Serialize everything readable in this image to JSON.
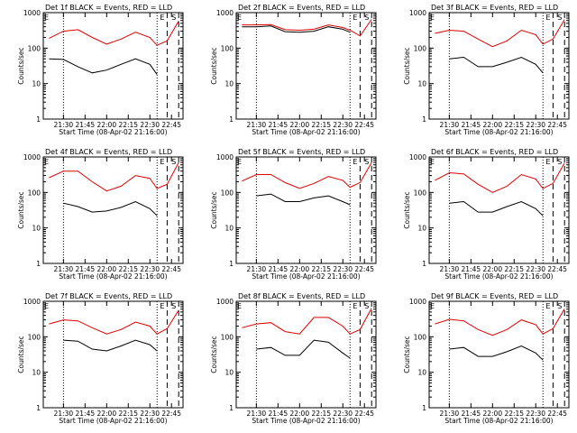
{
  "figure": {
    "colors": {
      "events": "#000000",
      "lld": "#e00000",
      "axes": "#000000",
      "background": "#ffffff"
    },
    "shared": {
      "xlabel": "Start Time (08-Apr-02 21:16:00)",
      "ylabel": "Counts/sec",
      "xticks": [
        "21:30",
        "21:45",
        "22:00",
        "22:15",
        "22:30",
        "22:45"
      ],
      "yticks": [
        "1",
        "10",
        "100",
        "1000"
      ],
      "markers": [
        "E",
        "S"
      ]
    }
  },
  "chart_data": [
    {
      "type": "line",
      "title": "Det 1f BLACK = Events, RED = LLD",
      "xlabel": "Start Time (08-Apr-02 21:16:00)",
      "ylabel": "Counts/sec",
      "yscale": "log",
      "ylim": [
        1,
        1000
      ],
      "x": [
        "21:20",
        "21:30",
        "21:40",
        "21:50",
        "22:00",
        "22:10",
        "22:20",
        "22:30",
        "22:35",
        "22:42",
        "22:50"
      ],
      "series": [
        {
          "name": "LLD",
          "values": [
            190,
            300,
            330,
            200,
            130,
            180,
            280,
            200,
            120,
            160,
            580
          ]
        },
        {
          "name": "Events",
          "values": [
            50,
            48,
            30,
            20,
            24,
            35,
            50,
            35,
            18,
            null,
            null
          ]
        }
      ],
      "vlines": [
        {
          "x": "21:30",
          "style": "dotted"
        },
        {
          "x": "22:35",
          "style": "dotted"
        },
        {
          "x": "22:42",
          "style": "dashed",
          "label": "E"
        },
        {
          "x": "22:50",
          "style": "dashed",
          "label": "S"
        }
      ]
    },
    {
      "type": "line",
      "title": "Det 2f BLACK = Events, RED = LLD",
      "xlabel": "Start Time (08-Apr-02 21:16:00)",
      "ylabel": "Counts/sec",
      "yscale": "log",
      "ylim": [
        1,
        1000
      ],
      "x": [
        "21:20",
        "21:30",
        "21:40",
        "21:50",
        "22:00",
        "22:10",
        "22:20",
        "22:30",
        "22:35",
        "22:42",
        "22:50"
      ],
      "series": [
        {
          "name": "LLD",
          "values": [
            450,
            450,
            460,
            330,
            320,
            340,
            450,
            380,
            320,
            220,
            650
          ]
        },
        {
          "name": "Events",
          "values": [
            400,
            400,
            420,
            290,
            280,
            300,
            400,
            340,
            280,
            null,
            null
          ]
        }
      ],
      "vlines": [
        {
          "x": "21:30",
          "style": "dotted"
        },
        {
          "x": "22:35",
          "style": "dotted"
        },
        {
          "x": "22:42",
          "style": "dashed",
          "label": "E"
        },
        {
          "x": "22:50",
          "style": "dashed",
          "label": "S"
        }
      ]
    },
    {
      "type": "line",
      "title": "Det 3f BLACK = Events, RED = LLD",
      "xlabel": "Start Time (08-Apr-02 21:16:00)",
      "ylabel": "Counts/sec",
      "yscale": "log",
      "ylim": [
        1,
        1000
      ],
      "x": [
        "21:20",
        "21:30",
        "21:40",
        "21:50",
        "22:00",
        "22:10",
        "22:20",
        "22:30",
        "22:35",
        "22:42",
        "22:50"
      ],
      "series": [
        {
          "name": "LLD",
          "values": [
            260,
            320,
            300,
            180,
            110,
            160,
            320,
            240,
            130,
            180,
            640
          ]
        },
        {
          "name": "Events",
          "values": [
            null,
            50,
            55,
            30,
            30,
            40,
            55,
            35,
            20,
            null,
            null
          ]
        }
      ],
      "vlines": [
        {
          "x": "21:30",
          "style": "dotted"
        },
        {
          "x": "22:35",
          "style": "dotted"
        },
        {
          "x": "22:42",
          "style": "dashed",
          "label": "E"
        },
        {
          "x": "22:50",
          "style": "dashed",
          "label": "S"
        }
      ]
    },
    {
      "type": "line",
      "title": "Det 4f BLACK = Events, RED = LLD",
      "xlabel": "Start Time (08-Apr-02 21:16:00)",
      "ylabel": "Counts/sec",
      "yscale": "log",
      "ylim": [
        1,
        1000
      ],
      "x": [
        "21:20",
        "21:30",
        "21:40",
        "21:50",
        "22:00",
        "22:10",
        "22:20",
        "22:30",
        "22:35",
        "22:42",
        "22:50"
      ],
      "series": [
        {
          "name": "LLD",
          "values": [
            260,
            400,
            400,
            200,
            110,
            150,
            300,
            250,
            130,
            170,
            700
          ]
        },
        {
          "name": "Events",
          "values": [
            null,
            50,
            40,
            28,
            30,
            38,
            55,
            35,
            22,
            null,
            null
          ]
        }
      ],
      "vlines": [
        {
          "x": "21:30",
          "style": "dotted"
        },
        {
          "x": "22:35",
          "style": "dotted"
        },
        {
          "x": "22:42",
          "style": "dashed",
          "label": "E"
        },
        {
          "x": "22:50",
          "style": "dashed",
          "label": "S"
        }
      ]
    },
    {
      "type": "line",
      "title": "Det 5f BLACK = Events, RED = LLD",
      "xlabel": "Start Time (08-Apr-02 21:16:00)",
      "ylabel": "Counts/sec",
      "yscale": "log",
      "ylim": [
        1,
        1000
      ],
      "x": [
        "21:20",
        "21:30",
        "21:40",
        "21:50",
        "22:00",
        "22:10",
        "22:20",
        "22:30",
        "22:35",
        "22:42",
        "22:50"
      ],
      "series": [
        {
          "name": "LLD",
          "values": [
            210,
            320,
            320,
            190,
            130,
            180,
            280,
            220,
            140,
            190,
            700
          ]
        },
        {
          "name": "Events",
          "values": [
            null,
            80,
            90,
            55,
            55,
            70,
            80,
            55,
            45,
            null,
            null
          ]
        }
      ],
      "vlines": [
        {
          "x": "21:30",
          "style": "dotted"
        },
        {
          "x": "22:35",
          "style": "dotted"
        },
        {
          "x": "22:42",
          "style": "dashed",
          "label": "E"
        },
        {
          "x": "22:50",
          "style": "dashed",
          "label": "S"
        }
      ]
    },
    {
      "type": "line",
      "title": "Det 6f BLACK = Events, RED = LLD",
      "xlabel": "Start Time (08-Apr-02 21:16:00)",
      "ylabel": "Counts/sec",
      "yscale": "log",
      "ylim": [
        1,
        1000
      ],
      "x": [
        "21:20",
        "21:30",
        "21:40",
        "21:50",
        "22:00",
        "22:10",
        "22:20",
        "22:30",
        "22:35",
        "22:42",
        "22:50"
      ],
      "series": [
        {
          "name": "LLD",
          "values": [
            220,
            360,
            330,
            170,
            100,
            150,
            320,
            240,
            130,
            180,
            680
          ]
        },
        {
          "name": "Events",
          "values": [
            null,
            50,
            55,
            28,
            28,
            40,
            55,
            35,
            22,
            null,
            null
          ]
        }
      ],
      "vlines": [
        {
          "x": "21:30",
          "style": "dotted"
        },
        {
          "x": "22:35",
          "style": "dotted"
        },
        {
          "x": "22:42",
          "style": "dashed",
          "label": "E"
        },
        {
          "x": "22:50",
          "style": "dashed",
          "label": "S"
        }
      ]
    },
    {
      "type": "line",
      "title": "Det 7f BLACK = Events, RED = LLD",
      "xlabel": "Start Time (08-Apr-02 21:16:00)",
      "ylabel": "Counts/sec",
      "yscale": "log",
      "ylim": [
        1,
        1000
      ],
      "x": [
        "21:20",
        "21:30",
        "21:40",
        "21:50",
        "22:00",
        "22:10",
        "22:20",
        "22:30",
        "22:35",
        "22:42",
        "22:50"
      ],
      "series": [
        {
          "name": "LLD",
          "values": [
            230,
            300,
            280,
            180,
            120,
            160,
            260,
            200,
            120,
            170,
            560
          ]
        },
        {
          "name": "Events",
          "values": [
            null,
            80,
            75,
            45,
            40,
            55,
            80,
            60,
            40,
            null,
            null
          ]
        }
      ],
      "vlines": [
        {
          "x": "21:30",
          "style": "dotted"
        },
        {
          "x": "22:35",
          "style": "dotted"
        },
        {
          "x": "22:42",
          "style": "dashed",
          "label": "E"
        },
        {
          "x": "22:50",
          "style": "dashed",
          "label": "S"
        }
      ]
    },
    {
      "type": "line",
      "title": "Det 8f BLACK = Events, RED = LLD",
      "xlabel": "Start Time (08-Apr-02 21:16:00)",
      "ylabel": "Counts/sec",
      "yscale": "log",
      "ylim": [
        1,
        1000
      ],
      "x": [
        "21:20",
        "21:30",
        "21:40",
        "21:50",
        "22:00",
        "22:10",
        "22:20",
        "22:30",
        "22:35",
        "22:42",
        "22:50"
      ],
      "series": [
        {
          "name": "LLD",
          "values": [
            180,
            230,
            250,
            140,
            120,
            350,
            350,
            200,
            120,
            160,
            640
          ]
        },
        {
          "name": "Events",
          "values": [
            null,
            45,
            50,
            30,
            30,
            80,
            70,
            35,
            25,
            null,
            null
          ]
        }
      ],
      "vlines": [
        {
          "x": "21:30",
          "style": "dotted"
        },
        {
          "x": "22:35",
          "style": "dotted"
        },
        {
          "x": "22:42",
          "style": "dashed",
          "label": "E"
        },
        {
          "x": "22:50",
          "style": "dashed",
          "label": "S"
        }
      ]
    },
    {
      "type": "line",
      "title": "Det 9f BLACK = Events, RED = LLD",
      "xlabel": "Start Time (08-Apr-02 21:16:00)",
      "ylabel": "Counts/sec",
      "yscale": "log",
      "ylim": [
        1,
        1000
      ],
      "x": [
        "21:20",
        "21:30",
        "21:40",
        "21:50",
        "22:00",
        "22:10",
        "22:20",
        "22:30",
        "22:35",
        "22:42",
        "22:50"
      ],
      "series": [
        {
          "name": "LLD",
          "values": [
            230,
            310,
            280,
            160,
            110,
            160,
            300,
            220,
            120,
            170,
            620
          ]
        },
        {
          "name": "Events",
          "values": [
            null,
            45,
            50,
            28,
            28,
            38,
            55,
            35,
            22,
            null,
            null
          ]
        }
      ],
      "vlines": [
        {
          "x": "21:30",
          "style": "dotted"
        },
        {
          "x": "22:35",
          "style": "dotted"
        },
        {
          "x": "22:42",
          "style": "dashed",
          "label": "E"
        },
        {
          "x": "22:50",
          "style": "dashed",
          "label": "S"
        }
      ]
    }
  ]
}
